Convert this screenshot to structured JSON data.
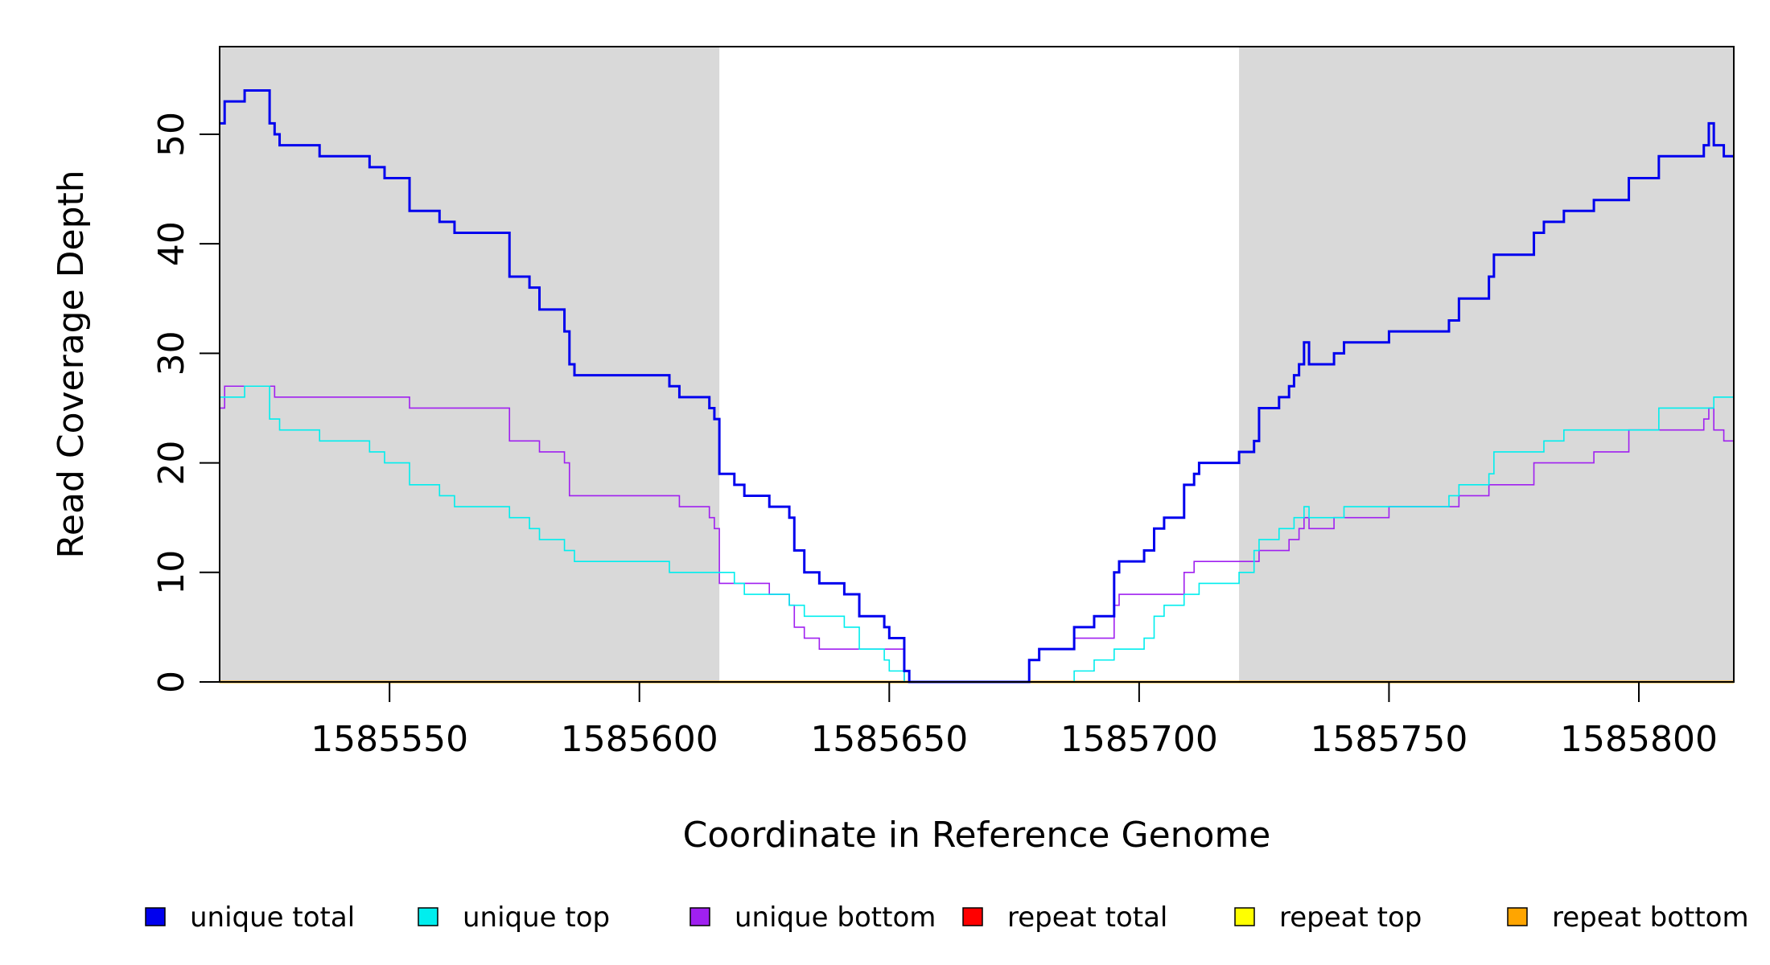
{
  "chart_data": {
    "type": "line",
    "title": "",
    "xlabel": "Coordinate in Reference Genome",
    "ylabel": "Read Coverage Depth",
    "xlim": [
      1585516,
      1585819
    ],
    "ylim": [
      0,
      58
    ],
    "x_ticks": [
      1585550,
      1585600,
      1585650,
      1585700,
      1585750,
      1585800
    ],
    "y_ticks": [
      0,
      10,
      20,
      30,
      40,
      50
    ],
    "x_tick_labels": [
      "1585550",
      "1585600",
      "1585650",
      "1585700",
      "1585750",
      "1585800"
    ],
    "y_tick_labels": [
      "0",
      "10",
      "20",
      "30",
      "40",
      "50"
    ],
    "shaded_regions": [
      [
        1585516,
        1585616
      ],
      [
        1585720,
        1585819
      ]
    ],
    "shade_color": "#d9d9d9",
    "grid": false,
    "legend_position": "bottom",
    "series": [
      {
        "name": "unique total",
        "color": "#0000ee",
        "width": 3,
        "points": [
          [
            1585516,
            51
          ],
          [
            1585517,
            53
          ],
          [
            1585521,
            54
          ],
          [
            1585526,
            51
          ],
          [
            1585527,
            50
          ],
          [
            1585528,
            49
          ],
          [
            1585536,
            48
          ],
          [
            1585546,
            47
          ],
          [
            1585549,
            46
          ],
          [
            1585554,
            43
          ],
          [
            1585560,
            42
          ],
          [
            1585563,
            41
          ],
          [
            1585574,
            37
          ],
          [
            1585578,
            36
          ],
          [
            1585580,
            34
          ],
          [
            1585585,
            32
          ],
          [
            1585586,
            29
          ],
          [
            1585587,
            28
          ],
          [
            1585606,
            27
          ],
          [
            1585608,
            26
          ],
          [
            1585614,
            25
          ],
          [
            1585615,
            24
          ],
          [
            1585616,
            19
          ],
          [
            1585619,
            18
          ],
          [
            1585621,
            17
          ],
          [
            1585626,
            16
          ],
          [
            1585630,
            15
          ],
          [
            1585631,
            12
          ],
          [
            1585633,
            10
          ],
          [
            1585636,
            9
          ],
          [
            1585641,
            8
          ],
          [
            1585644,
            6
          ],
          [
            1585649,
            5
          ],
          [
            1585650,
            4
          ],
          [
            1585653,
            1
          ],
          [
            1585654,
            0
          ],
          [
            1585678,
            2
          ],
          [
            1585680,
            3
          ],
          [
            1585687,
            5
          ],
          [
            1585691,
            6
          ],
          [
            1585695,
            10
          ],
          [
            1585696,
            11
          ],
          [
            1585701,
            12
          ],
          [
            1585703,
            14
          ],
          [
            1585705,
            15
          ],
          [
            1585709,
            18
          ],
          [
            1585711,
            19
          ],
          [
            1585712,
            20
          ],
          [
            1585720,
            21
          ],
          [
            1585723,
            22
          ],
          [
            1585724,
            25
          ],
          [
            1585728,
            26
          ],
          [
            1585730,
            27
          ],
          [
            1585731,
            28
          ],
          [
            1585732,
            29
          ],
          [
            1585733,
            31
          ],
          [
            1585734,
            29
          ],
          [
            1585739,
            30
          ],
          [
            1585741,
            31
          ],
          [
            1585750,
            32
          ],
          [
            1585762,
            33
          ],
          [
            1585764,
            35
          ],
          [
            1585770,
            37
          ],
          [
            1585771,
            39
          ],
          [
            1585779,
            41
          ],
          [
            1585781,
            42
          ],
          [
            1585785,
            43
          ],
          [
            1585791,
            44
          ],
          [
            1585798,
            46
          ],
          [
            1585804,
            48
          ],
          [
            1585813,
            49
          ],
          [
            1585814,
            51
          ],
          [
            1585815,
            49
          ],
          [
            1585817,
            48
          ],
          [
            1585819,
            48
          ]
        ]
      },
      {
        "name": "unique top",
        "color": "#00eeee",
        "width": 1.6,
        "points": [
          [
            1585516,
            26
          ],
          [
            1585521,
            27
          ],
          [
            1585526,
            24
          ],
          [
            1585528,
            23
          ],
          [
            1585536,
            22
          ],
          [
            1585546,
            21
          ],
          [
            1585549,
            20
          ],
          [
            1585554,
            18
          ],
          [
            1585560,
            17
          ],
          [
            1585563,
            16
          ],
          [
            1585574,
            15
          ],
          [
            1585578,
            14
          ],
          [
            1585580,
            13
          ],
          [
            1585585,
            12
          ],
          [
            1585587,
            11
          ],
          [
            1585606,
            10
          ],
          [
            1585616,
            10
          ],
          [
            1585619,
            9
          ],
          [
            1585621,
            8
          ],
          [
            1585630,
            7
          ],
          [
            1585633,
            6
          ],
          [
            1585641,
            5
          ],
          [
            1585644,
            3
          ],
          [
            1585649,
            2
          ],
          [
            1585650,
            1
          ],
          [
            1585653,
            0
          ],
          [
            1585687,
            1
          ],
          [
            1585691,
            2
          ],
          [
            1585695,
            3
          ],
          [
            1585701,
            4
          ],
          [
            1585703,
            6
          ],
          [
            1585705,
            7
          ],
          [
            1585709,
            8
          ],
          [
            1585712,
            9
          ],
          [
            1585720,
            10
          ],
          [
            1585723,
            12
          ],
          [
            1585724,
            13
          ],
          [
            1585728,
            14
          ],
          [
            1585730,
            14
          ],
          [
            1585731,
            15
          ],
          [
            1585733,
            16
          ],
          [
            1585734,
            15
          ],
          [
            1585741,
            16
          ],
          [
            1585750,
            16
          ],
          [
            1585762,
            17
          ],
          [
            1585764,
            18
          ],
          [
            1585770,
            19
          ],
          [
            1585771,
            21
          ],
          [
            1585781,
            22
          ],
          [
            1585785,
            23
          ],
          [
            1585798,
            23
          ],
          [
            1585804,
            25
          ],
          [
            1585813,
            25
          ],
          [
            1585815,
            26
          ],
          [
            1585819,
            26
          ]
        ]
      },
      {
        "name": "unique bottom",
        "color": "#a020f0",
        "width": 1.6,
        "points": [
          [
            1585516,
            25
          ],
          [
            1585517,
            27
          ],
          [
            1585527,
            26
          ],
          [
            1585554,
            25
          ],
          [
            1585574,
            22
          ],
          [
            1585580,
            21
          ],
          [
            1585585,
            20
          ],
          [
            1585586,
            17
          ],
          [
            1585608,
            16
          ],
          [
            1585614,
            15
          ],
          [
            1585615,
            14
          ],
          [
            1585616,
            9
          ],
          [
            1585626,
            8
          ],
          [
            1585630,
            7
          ],
          [
            1585631,
            5
          ],
          [
            1585633,
            4
          ],
          [
            1585636,
            3
          ],
          [
            1585650,
            3
          ],
          [
            1585653,
            0
          ],
          [
            1585678,
            2
          ],
          [
            1585680,
            3
          ],
          [
            1585687,
            4
          ],
          [
            1585695,
            7
          ],
          [
            1585696,
            8
          ],
          [
            1585709,
            10
          ],
          [
            1585711,
            11
          ],
          [
            1585724,
            12
          ],
          [
            1585730,
            13
          ],
          [
            1585732,
            14
          ],
          [
            1585733,
            15
          ],
          [
            1585734,
            14
          ],
          [
            1585739,
            15
          ],
          [
            1585750,
            16
          ],
          [
            1585764,
            17
          ],
          [
            1585770,
            18
          ],
          [
            1585779,
            20
          ],
          [
            1585791,
            21
          ],
          [
            1585798,
            23
          ],
          [
            1585813,
            24
          ],
          [
            1585814,
            25
          ],
          [
            1585815,
            23
          ],
          [
            1585817,
            22
          ],
          [
            1585819,
            22
          ]
        ]
      },
      {
        "name": "repeat total",
        "color": "#ff0000",
        "width": 2,
        "points": [
          [
            1585516,
            0
          ],
          [
            1585819,
            0
          ]
        ]
      },
      {
        "name": "repeat top",
        "color": "#ffff00",
        "width": 2,
        "points": [
          [
            1585516,
            0
          ],
          [
            1585819,
            0
          ]
        ]
      },
      {
        "name": "repeat bottom",
        "color": "#ffa500",
        "width": 3,
        "points": [
          [
            1585516,
            0
          ],
          [
            1585819,
            0
          ]
        ]
      }
    ]
  }
}
